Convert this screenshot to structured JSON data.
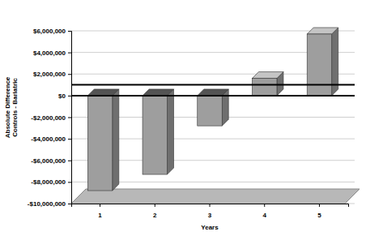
{
  "chart_data": {
    "type": "bar",
    "x_label": "Years",
    "y_label": "Absolute Difference Controls - Bariatric",
    "categories": [
      "1",
      "2",
      "3",
      "4",
      "5"
    ],
    "values": [
      -8800000,
      -7300000,
      -2800000,
      1600000,
      5700000
    ],
    "color": "#9e9e9e",
    "ylim": [
      -10000000,
      6000000
    ],
    "yticks": [
      {
        "value": -10000000,
        "label": "-$10,000,000"
      },
      {
        "value": -8000000,
        "label": "-$8,000,000"
      },
      {
        "value": -6000000,
        "label": "-$6,000,000"
      },
      {
        "value": -4000000,
        "label": "-$4,000,000"
      },
      {
        "value": -2000000,
        "label": "-$2,000,000"
      },
      {
        "value": 0,
        "label": "$0"
      },
      {
        "value": 2000000,
        "label": "$2,000,000"
      },
      {
        "value": 4000000,
        "label": "$4,000,000"
      },
      {
        "value": 6000000,
        "label": "$6,000,000"
      }
    ],
    "grid": true,
    "reference_line": 1000000
  }
}
